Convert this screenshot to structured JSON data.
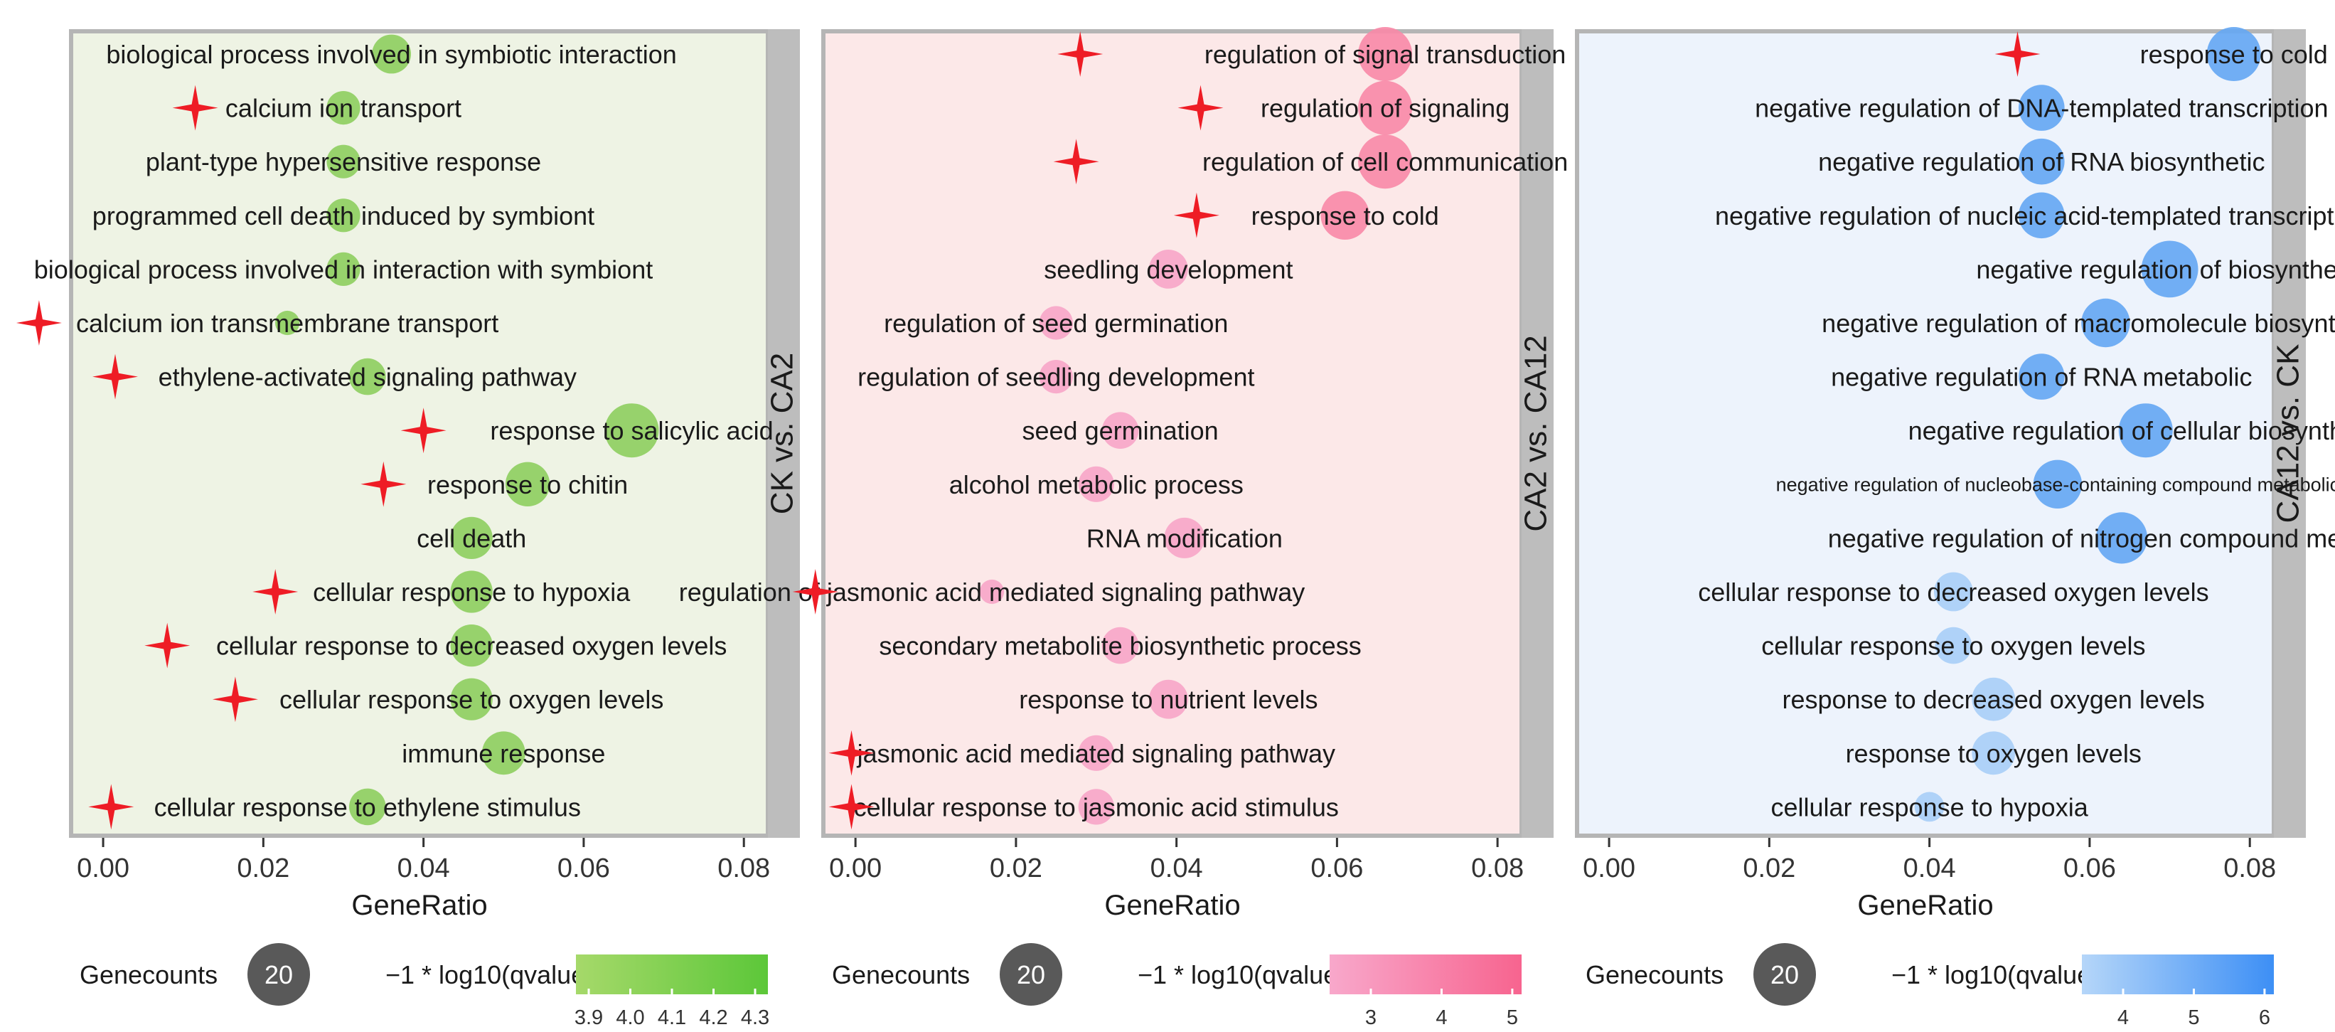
{
  "chart_data": [
    {
      "type": "scatter",
      "subtype": "bubble",
      "facet_label": "CK vs. CA2",
      "xlabel": "GeneRatio",
      "xlim": [
        -0.004,
        0.083
      ],
      "xticks": [
        0.0,
        0.02,
        0.04,
        0.06,
        0.08
      ],
      "xtick_labels": [
        "0.00",
        "0.02",
        "0.04",
        "0.06",
        "0.08"
      ],
      "panel_bg": "#eef3e4",
      "strip_bg": "#bdbdbd",
      "legend": {
        "size_title": "Genecounts",
        "size_value": "20",
        "color_title": "−1 * log10(qvalue)",
        "color_ticks": [
          "3.9",
          "4.0",
          "4.1",
          "4.2",
          "4.3"
        ],
        "gradient": [
          "#a6d96a",
          "#5cc739"
        ]
      },
      "terms": [
        {
          "label": "biological process involved in symbiotic interaction",
          "x": 0.036,
          "size": 0.72,
          "color": "#8fcf62",
          "star": null
        },
        {
          "label": "calcium ion transport",
          "x": 0.03,
          "size": 0.62,
          "color": "#8fcf62",
          "star": 0.0115
        },
        {
          "label": "plant-type hypersensitive response",
          "x": 0.03,
          "size": 0.62,
          "color": "#8fcf62",
          "star": null
        },
        {
          "label": "programmed cell death induced by symbiont",
          "x": 0.03,
          "size": 0.62,
          "color": "#8fcf62",
          "star": null
        },
        {
          "label": "biological process involved in interaction with symbiont",
          "x": 0.03,
          "size": 0.62,
          "color": "#8fcf62",
          "star": null
        },
        {
          "label": "calcium ion transmembrane transport",
          "x": 0.023,
          "size": 0.45,
          "color": "#8fcf62",
          "star": -0.008
        },
        {
          "label": "ethylene-activated signaling pathway",
          "x": 0.033,
          "size": 0.68,
          "color": "#8fcf62",
          "star": 0.0015
        },
        {
          "label": "response to salicylic acid",
          "x": 0.066,
          "size": 1.0,
          "color": "#8fcf62",
          "star": 0.04
        },
        {
          "label": "response to chitin",
          "x": 0.053,
          "size": 0.82,
          "color": "#8fcf62",
          "star": 0.035
        },
        {
          "label": "cell death",
          "x": 0.046,
          "size": 0.78,
          "color": "#8fcf62",
          "star": null
        },
        {
          "label": "cellular response to hypoxia",
          "x": 0.046,
          "size": 0.78,
          "color": "#8fcf62",
          "star": 0.0215
        },
        {
          "label": "cellular response to decreased oxygen levels",
          "x": 0.046,
          "size": 0.78,
          "color": "#8fcf62",
          "star": 0.008
        },
        {
          "label": "cellular response to oxygen levels",
          "x": 0.046,
          "size": 0.78,
          "color": "#8fcf62",
          "star": 0.0165
        },
        {
          "label": "immune response",
          "x": 0.05,
          "size": 0.8,
          "color": "#8fcf62",
          "star": null
        },
        {
          "label": "cellular response to ethylene stimulus",
          "x": 0.033,
          "size": 0.68,
          "color": "#8fcf62",
          "star": 0.001
        }
      ]
    },
    {
      "type": "scatter",
      "subtype": "bubble",
      "facet_label": "CA2 vs. CA12",
      "xlabel": "GeneRatio",
      "xlim": [
        -0.004,
        0.083
      ],
      "xticks": [
        0.0,
        0.02,
        0.04,
        0.06,
        0.08
      ],
      "xtick_labels": [
        "0.00",
        "0.02",
        "0.04",
        "0.06",
        "0.08"
      ],
      "panel_bg": "#fce8e8",
      "strip_bg": "#bdbdbd",
      "legend": {
        "size_title": "Genecounts",
        "size_value": "20",
        "color_title": "−1 * log10(qvalue)",
        "color_ticks": [
          "3",
          "4",
          "5"
        ],
        "gradient": [
          "#f8a8cb",
          "#f7648f"
        ]
      },
      "terms": [
        {
          "label": "regulation of signal transduction",
          "x": 0.066,
          "size": 1.0,
          "color": "#f98aa8",
          "star": 0.028
        },
        {
          "label": "regulation of signaling",
          "x": 0.066,
          "size": 1.0,
          "color": "#f98aa8",
          "star": 0.043
        },
        {
          "label": "regulation of cell communication",
          "x": 0.066,
          "size": 1.0,
          "color": "#f98aa8",
          "star": 0.0275
        },
        {
          "label": "response to cold",
          "x": 0.061,
          "size": 0.9,
          "color": "#f98aa8",
          "star": 0.0425
        },
        {
          "label": "seedling development",
          "x": 0.039,
          "size": 0.72,
          "color": "#f7a6c8",
          "star": null
        },
        {
          "label": "regulation of seed germination",
          "x": 0.025,
          "size": 0.62,
          "color": "#f7a6c8",
          "star": null
        },
        {
          "label": "regulation of seedling development",
          "x": 0.025,
          "size": 0.62,
          "color": "#f7a6c8",
          "star": null
        },
        {
          "label": "seed germination",
          "x": 0.033,
          "size": 0.68,
          "color": "#f7a6c8",
          "star": null
        },
        {
          "label": "alcohol metabolic process",
          "x": 0.03,
          "size": 0.66,
          "color": "#f7a6c8",
          "star": null
        },
        {
          "label": "RNA modification",
          "x": 0.041,
          "size": 0.75,
          "color": "#f7a6c8",
          "star": null
        },
        {
          "label": "regulation of jasmonic acid mediated signaling pathway",
          "x": 0.017,
          "size": 0.45,
          "color": "#f7a6c8",
          "star": -0.005
        },
        {
          "label": "secondary metabolite biosynthetic process",
          "x": 0.033,
          "size": 0.68,
          "color": "#f7a6c8",
          "star": null
        },
        {
          "label": "response to nutrient levels",
          "x": 0.039,
          "size": 0.72,
          "color": "#f7a6c8",
          "star": null
        },
        {
          "label": "jasmonic acid mediated signaling pathway",
          "x": 0.03,
          "size": 0.66,
          "color": "#f7a6c8",
          "star": -0.0005
        },
        {
          "label": "cellular response to jasmonic acid stimulus",
          "x": 0.03,
          "size": 0.66,
          "color": "#f7a6c8",
          "star": -0.0005
        }
      ]
    },
    {
      "type": "scatter",
      "subtype": "bubble",
      "facet_label": "CA12 vs. CK",
      "xlabel": "GeneRatio",
      "xlim": [
        -0.004,
        0.083
      ],
      "xticks": [
        0.0,
        0.02,
        0.04,
        0.06,
        0.08
      ],
      "xtick_labels": [
        "0.00",
        "0.02",
        "0.04",
        "0.06",
        "0.08"
      ],
      "panel_bg": "#edf3fc",
      "strip_bg": "#bdbdbd",
      "legend": {
        "size_title": "Genecounts",
        "size_value": "20",
        "color_title": "−1 * log10(qvalue)",
        "color_ticks": [
          "4",
          "5",
          "6"
        ],
        "gradient": [
          "#b5d6f9",
          "#3d8ff5"
        ]
      },
      "terms": [
        {
          "label": "response to cold",
          "x": 0.078,
          "size": 1.0,
          "color": "#66a8f3",
          "star": 0.051
        },
        {
          "label": "negative regulation of DNA-templated transcription",
          "x": 0.054,
          "size": 0.85,
          "color": "#66a8f3",
          "star": null
        },
        {
          "label": "negative regulation of RNA biosynthetic",
          "x": 0.054,
          "size": 0.85,
          "color": "#66a8f3",
          "star": null
        },
        {
          "label": "negative regulation of nucleic acid-templated transcription",
          "x": 0.054,
          "size": 0.85,
          "color": "#66a8f3",
          "star": null
        },
        {
          "label": "negative regulation of biosynthetic",
          "x": 0.07,
          "size": 1.05,
          "color": "#66a8f3",
          "star": null
        },
        {
          "label": "negative regulation of macromolecule biosynthetic",
          "x": 0.062,
          "size": 0.9,
          "color": "#66a8f3",
          "star": null
        },
        {
          "label": "negative regulation of RNA metabolic",
          "x": 0.054,
          "size": 0.85,
          "color": "#66a8f3",
          "star": null
        },
        {
          "label": "negative regulation of cellular biosynthetic",
          "x": 0.067,
          "size": 1.0,
          "color": "#66a8f3",
          "star": null
        },
        {
          "label": "negative regulation of nucleobase-containing compound metabolic",
          "x": 0.056,
          "size": 0.9,
          "color": "#66a8f3",
          "star": null
        },
        {
          "label": "negative regulation of nitrogen compound metabolic",
          "x": 0.064,
          "size": 0.95,
          "color": "#66a8f3",
          "star": null
        },
        {
          "label": "cellular response to decreased oxygen levels",
          "x": 0.043,
          "size": 0.72,
          "color": "#a9cff7",
          "star": null
        },
        {
          "label": "cellular response to oxygen levels",
          "x": 0.043,
          "size": 0.68,
          "color": "#a9cff7",
          "star": null
        },
        {
          "label": "response to decreased oxygen levels",
          "x": 0.048,
          "size": 0.8,
          "color": "#a9cff7",
          "star": null
        },
        {
          "label": "response to oxygen levels",
          "x": 0.048,
          "size": 0.8,
          "color": "#a9cff7",
          "star": null
        },
        {
          "label": "cellular response to hypoxia",
          "x": 0.04,
          "size": 0.55,
          "color": "#a9cff7",
          "star": null
        }
      ]
    }
  ]
}
